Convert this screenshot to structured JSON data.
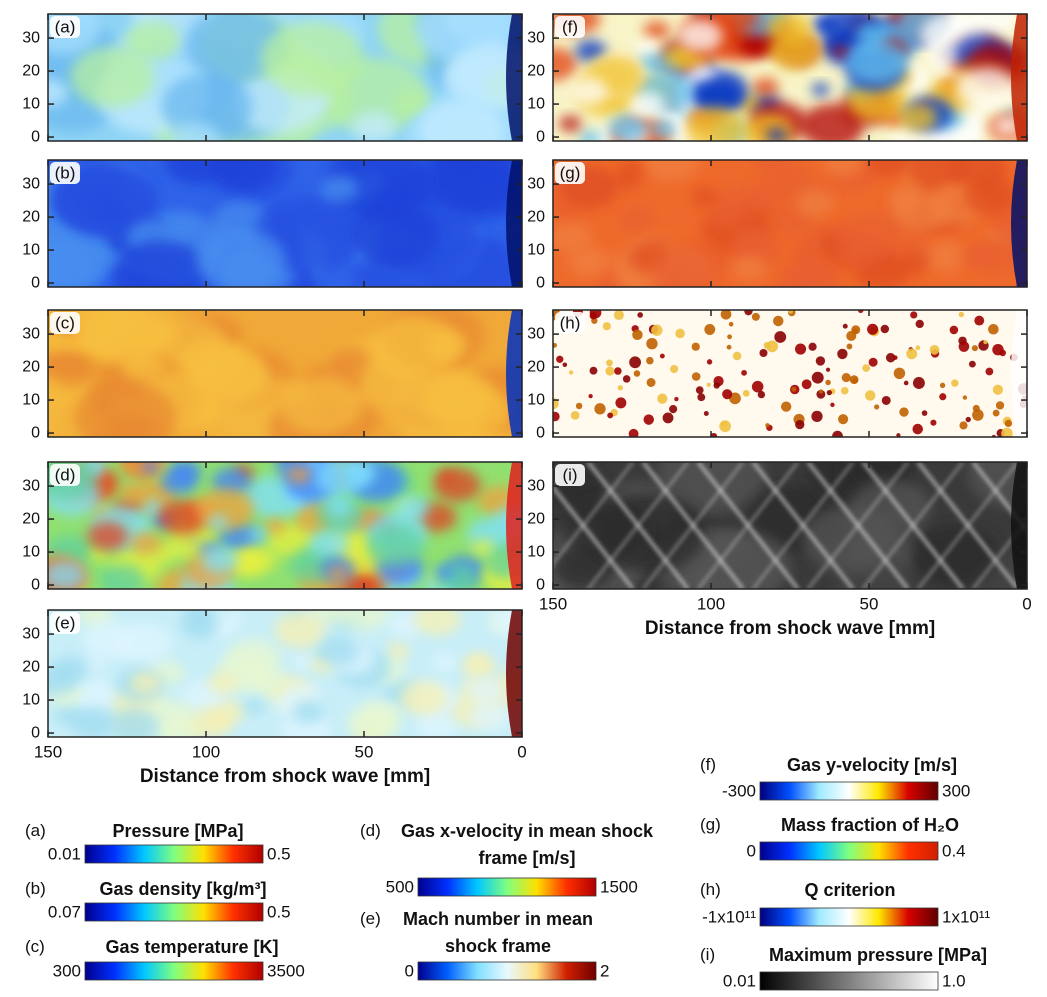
{
  "axes": {
    "xlabel": "Distance from shock wave [mm]",
    "xlim": [
      150,
      0
    ],
    "xticks": [
      150,
      100,
      50,
      0
    ],
    "ylim": [
      -1.2,
      37.3
    ],
    "yticks": [
      0,
      10,
      20,
      30
    ]
  },
  "panels": [
    {
      "label": "(a)",
      "title": "Pressure [MPa]",
      "min": 0.01,
      "max": 0.5,
      "colors": [
        "#00008f",
        "#0030ff",
        "#00c8ff",
        "#80ff80",
        "#ffe000",
        "#ff3000",
        "#b00000"
      ]
    },
    {
      "label": "(b)",
      "title": "Gas density [kg/m³]",
      "min": 0.07,
      "max": 0.5,
      "colors": [
        "#00008f",
        "#0030ff",
        "#00c8ff",
        "#80ff80",
        "#ffe000",
        "#ff3000",
        "#b00000"
      ]
    },
    {
      "label": "(c)",
      "title": "Gas temperature [K]",
      "min": 300,
      "max": 3500,
      "colors": [
        "#00008f",
        "#0030ff",
        "#00c8ff",
        "#80ff80",
        "#ffe000",
        "#ff3000",
        "#b00000"
      ]
    },
    {
      "label": "(d)",
      "title": "Gas x-velocity in mean shock frame [m/s]",
      "min": 500,
      "max": 1500,
      "colors": [
        "#00008f",
        "#0030ff",
        "#00c8ff",
        "#80ff80",
        "#ffe000",
        "#ff3000",
        "#b00000"
      ]
    },
    {
      "label": "(e)",
      "title": "Mach number in mean shock frame",
      "min": 0,
      "max": 2,
      "colors": [
        "#00008f",
        "#0060ff",
        "#80e0ff",
        "#e8f8ff",
        "#ffe080",
        "#d02000",
        "#700000"
      ]
    },
    {
      "label": "(f)",
      "title": "Gas y-velocity [m/s]",
      "min": -300,
      "max": 300,
      "colors": [
        "#00007f",
        "#0050ff",
        "#a0ecff",
        "#ffffff",
        "#ffe800",
        "#d80000",
        "#600000"
      ]
    },
    {
      "label": "(g)",
      "title": "Mass fraction of H₂O",
      "min": 0,
      "max": 0.4,
      "colors": [
        "#00008f",
        "#0030ff",
        "#00c8ff",
        "#80ff80",
        "#ffe000",
        "#ff3000",
        "#d02000"
      ]
    },
    {
      "label": "(h)",
      "title": "Q criterion",
      "min": {
        "value": -100000000000,
        "label": "-1x10¹¹"
      },
      "max": {
        "value": 100000000000,
        "label": "1x10¹¹"
      },
      "colors": [
        "#00007f",
        "#0050ff",
        "#a0ecff",
        "#ffffff",
        "#ffe800",
        "#d80000",
        "#600000"
      ]
    },
    {
      "label": "(i)",
      "title": "Maximum pressure [MPa]",
      "min": 0.01,
      "max": {
        "value": 1,
        "label": "1.0"
      },
      "colors": [
        "#000000",
        "#ffffff"
      ]
    }
  ]
}
